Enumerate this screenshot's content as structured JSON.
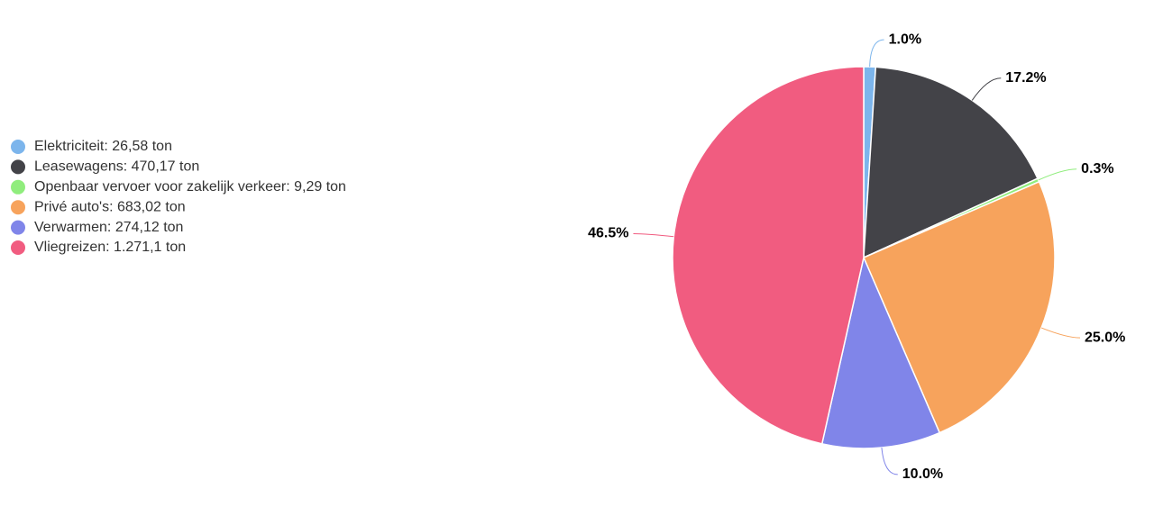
{
  "chart_data": {
    "type": "pie",
    "categories": [
      "Elektriciteit: 26,58 ton",
      "Leasewagens: 470,17 ton",
      "Openbaar vervoer voor zakelijk verkeer: 9,29 ton",
      "Privé auto's: 683,02 ton",
      "Verwarmen: 274,12 ton",
      "Vliegreizen: 1.271,1 ton"
    ],
    "values": [
      1.0,
      17.2,
      0.3,
      25.0,
      10.0,
      46.5
    ],
    "value_labels": [
      "1.0%",
      "17.2%",
      "0.3%",
      "25.0%",
      "10.0%",
      "46.5%"
    ],
    "colors": [
      "#7cb5ec",
      "#434348",
      "#90ed7d",
      "#f7a35c",
      "#8085e9",
      "#f15c80"
    ],
    "legend": "left"
  }
}
